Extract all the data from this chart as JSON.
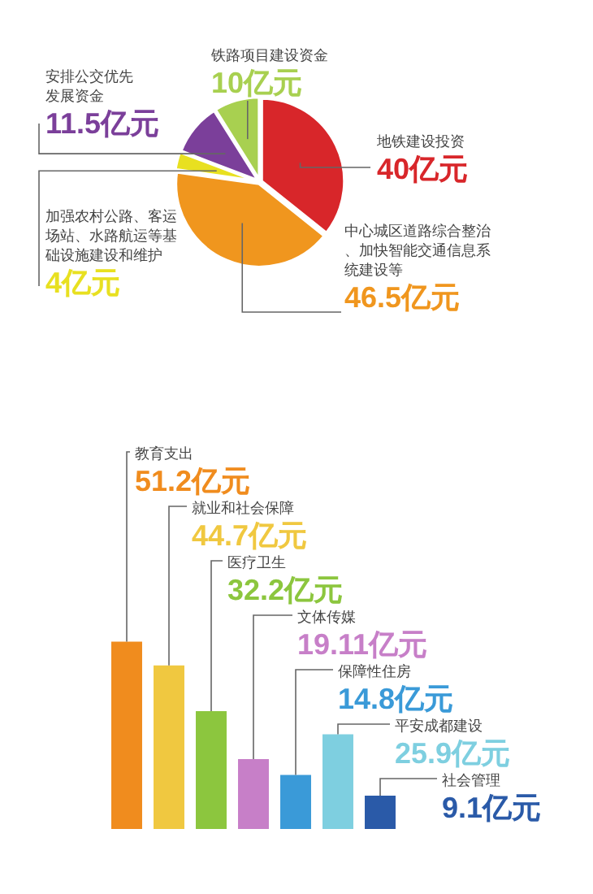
{
  "chart_data": [
    {
      "type": "pie",
      "categories": [
        "地铁建设投资",
        "中心城区道路综合整治、加快智能交通信息系统建设等",
        "加强农村公路、客运场站、水路航运等基础设施建设和维护",
        "安排公交优先发展资金",
        "铁路项目建设资金"
      ],
      "values": [
        40,
        46.5,
        4,
        11.5,
        10
      ],
      "colors": [
        "#d8262a",
        "#f0961e",
        "#e8e020",
        "#7b3f9a",
        "#a8d050"
      ],
      "value_labels": [
        "40亿元",
        "46.5亿元",
        "4亿元",
        "11.5亿元",
        "10亿元"
      ]
    },
    {
      "type": "bar",
      "categories": [
        null,
        null,
        null,
        null,
        null,
        null,
        null
      ],
      "annotations": [
        "教育支出",
        "就业和社会保障",
        "医疗卫生",
        "文体传媒",
        "保障性住房",
        "平安成都建设",
        "社会管理"
      ],
      "values": [
        51.2,
        44.7,
        32.2,
        19.11,
        14.8,
        25.9,
        9.1
      ],
      "colors": [
        "#f08c1e",
        "#f0c840",
        "#8cc63e",
        "#c77fc8",
        "#3a9ad8",
        "#7ecfe0",
        "#2a5aa8"
      ],
      "value_labels": [
        "51.2亿元",
        "44.7亿元",
        "32.2亿元",
        "19.11亿元",
        "14.8亿元",
        "25.9亿元",
        "9.1亿元"
      ],
      "tick_labels": false
    }
  ]
}
